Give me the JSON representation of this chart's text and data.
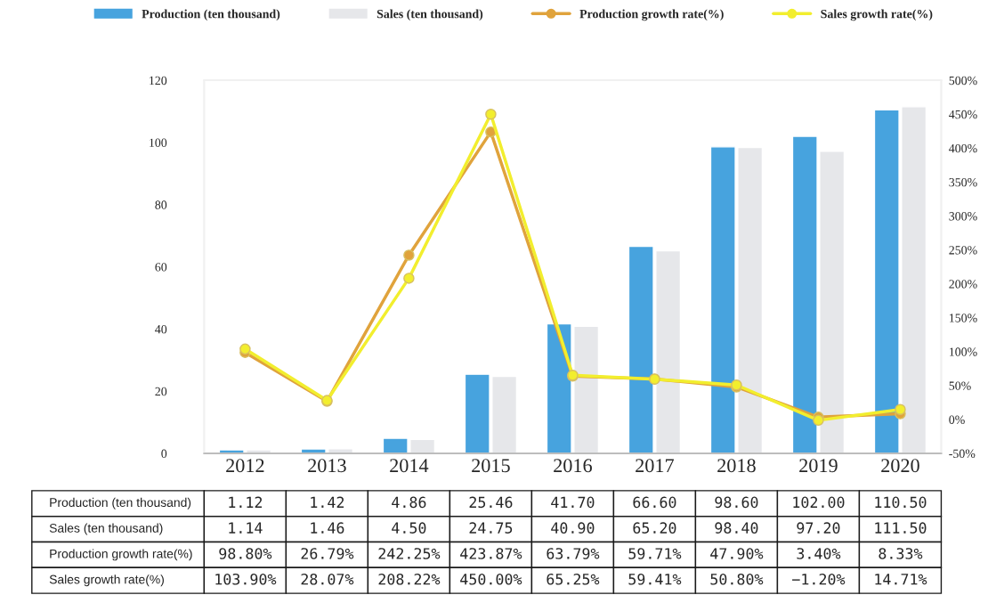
{
  "chart_data": {
    "type": "bar",
    "categories": [
      "2012",
      "2013",
      "2014",
      "2015",
      "2016",
      "2017",
      "2018",
      "2019",
      "2020"
    ],
    "series": [
      {
        "name": "Production (ten thousand)",
        "color": "#47a3de",
        "values": [
          1.12,
          1.42,
          4.86,
          25.46,
          41.7,
          66.6,
          98.6,
          102.0,
          110.5
        ],
        "value_labels": [
          "1.12",
          "1.42",
          "4.86",
          "25.46",
          "41.70",
          "66.60",
          "98.60",
          "102.00",
          "110.50"
        ]
      },
      {
        "name": "Sales (ten thousand)",
        "color": "#e6e7ea",
        "values": [
          1.14,
          1.46,
          4.5,
          24.75,
          40.9,
          65.2,
          98.4,
          97.2,
          111.5
        ],
        "value_labels": [
          "1.14",
          "1.46",
          "4.50",
          "24.75",
          "40.90",
          "65.20",
          "98.40",
          "97.20",
          "111.50"
        ]
      },
      {
        "name": "Production growth rate(%)",
        "type": "line",
        "axis": "y2",
        "marker": "circle",
        "color": "#e0a33c",
        "values": [
          98.8,
          26.79,
          242.25,
          423.87,
          63.79,
          59.71,
          47.9,
          3.4,
          8.33
        ],
        "value_labels": [
          "98.80%",
          "26.79%",
          "242.25%",
          "423.87%",
          "63.79%",
          "59.71%",
          "47.90%",
          "3.40%",
          "8.33%"
        ]
      },
      {
        "name": "Sales growth rate(%)",
        "type": "line",
        "axis": "y2",
        "marker": "circle",
        "color": "#f2ee2e",
        "values": [
          103.9,
          28.07,
          208.22,
          450.0,
          65.25,
          59.41,
          50.8,
          -1.2,
          14.71
        ],
        "value_labels": [
          "103.90%",
          "28.07%",
          "208.22%",
          "450.00%",
          "65.25%",
          "59.41%",
          "50.80%",
          "−1.20%",
          "14.71%"
        ]
      }
    ],
    "ylim": [
      0,
      120
    ],
    "yticks": [
      0,
      20,
      40,
      60,
      80,
      100,
      120
    ],
    "y2lim": [
      -50,
      500
    ],
    "y2ticks": [
      {
        "value": -50,
        "label": "-50%"
      },
      {
        "value": 0,
        "label": "0%"
      },
      {
        "value": 50,
        "label": "50%"
      },
      {
        "value": 100,
        "label": "100%"
      },
      {
        "value": 150,
        "label": "150%"
      },
      {
        "value": 200,
        "label": "200%"
      },
      {
        "value": 250,
        "label": "250%"
      },
      {
        "value": 300,
        "label": "300%"
      },
      {
        "value": 350,
        "label": "350%"
      },
      {
        "value": 400,
        "label": "400%"
      },
      {
        "value": 450,
        "label": "450%"
      },
      {
        "value": 500,
        "label": "500%"
      }
    ],
    "legend": "top",
    "grid": false
  }
}
